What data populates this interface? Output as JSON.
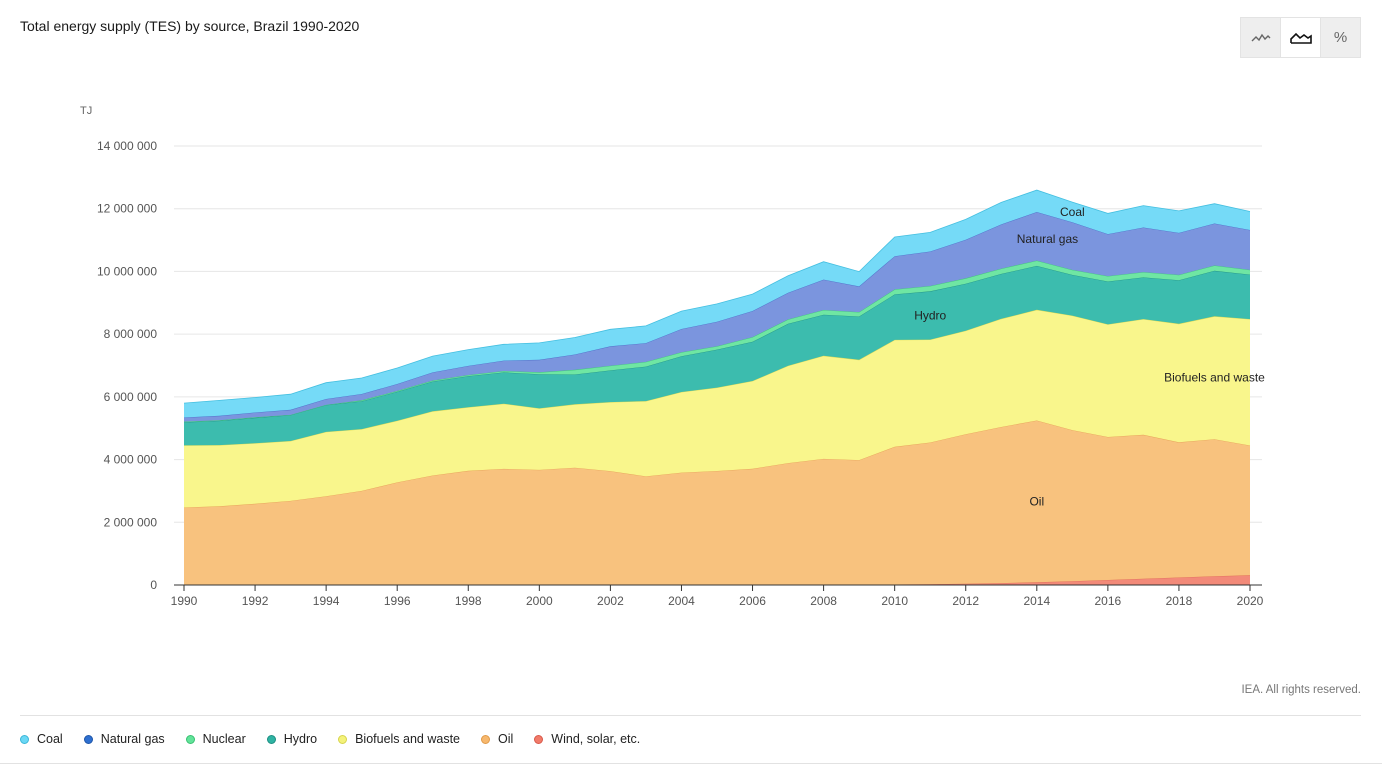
{
  "title": "Total energy supply (TES) by source, Brazil 1990-2020",
  "toggle": {
    "buttons": [
      {
        "name": "line-chart-toggle",
        "icon": "line-chart-icon"
      },
      {
        "name": "area-chart-toggle",
        "icon": "area-chart-icon",
        "active": true
      },
      {
        "name": "percent-toggle",
        "icon": "percent-icon",
        "label": "%"
      }
    ]
  },
  "credit": "IEA. All rights reserved.",
  "legend": [
    {
      "label": "Coal",
      "color": "#6bd8f5",
      "border": "#3bb6d8"
    },
    {
      "label": "Natural gas",
      "color": "#2e6fd0",
      "border": "#1f56a8"
    },
    {
      "label": "Nuclear",
      "color": "#62e39a",
      "border": "#38c172"
    },
    {
      "label": "Hydro",
      "color": "#2fb3a3",
      "border": "#1d8f82"
    },
    {
      "label": "Biofuels and waste",
      "color": "#f4f27a",
      "border": "#d6d44c"
    },
    {
      "label": "Oil",
      "color": "#f7b86e",
      "border": "#e09a48"
    },
    {
      "label": "Wind, solar, etc.",
      "color": "#f17b6a",
      "border": "#d9594a"
    }
  ],
  "chart_data": {
    "type": "area",
    "stacked": true,
    "title": "Total energy supply (TES) by source, Brazil 1990-2020",
    "unit": "TJ",
    "ylim": [
      0,
      14000000
    ],
    "yticks": [
      0,
      2000000,
      4000000,
      6000000,
      8000000,
      10000000,
      12000000,
      14000000
    ],
    "ytick_labels": [
      "0",
      "2 000 000",
      "4 000 000",
      "6 000 000",
      "8 000 000",
      "10 000 000",
      "12 000 000",
      "14 000 000"
    ],
    "xticks": [
      "1990",
      "1992",
      "1994",
      "1996",
      "1998",
      "2000",
      "2002",
      "2004",
      "2006",
      "2008",
      "2010",
      "2012",
      "2014",
      "2016",
      "2018",
      "2020"
    ],
    "x": [
      1990,
      1991,
      1992,
      1993,
      1994,
      1995,
      1996,
      1997,
      1998,
      1999,
      2000,
      2001,
      2002,
      2003,
      2004,
      2005,
      2006,
      2007,
      2008,
      2009,
      2010,
      2011,
      2012,
      2013,
      2014,
      2015,
      2016,
      2017,
      2018,
      2019,
      2020
    ],
    "series": [
      {
        "name": "Wind, solar, etc.",
        "color": "#f28a79",
        "line": "#e06a58",
        "values": [
          1000,
          1000,
          1000,
          1000,
          1000,
          1000,
          1000,
          1000,
          1000,
          1000,
          2000,
          2000,
          3000,
          4000,
          5000,
          6000,
          7000,
          9000,
          10000,
          13000,
          17000,
          25000,
          40000,
          60000,
          85000,
          120000,
          160000,
          200000,
          240000,
          280000,
          310000
        ]
      },
      {
        "name": "Oil",
        "color": "#f8c27e",
        "line": "#e7a45a",
        "values": [
          2470000,
          2510000,
          2590000,
          2680000,
          2830000,
          3000000,
          3270000,
          3490000,
          3640000,
          3700000,
          3670000,
          3740000,
          3630000,
          3460000,
          3580000,
          3630000,
          3700000,
          3880000,
          4010000,
          3970000,
          4390000,
          4520000,
          4770000,
          4980000,
          5160000,
          4820000,
          4560000,
          4590000,
          4310000,
          4370000,
          4140000
        ]
      },
      {
        "name": "Biofuels and waste",
        "color": "#f9f68c",
        "line": "#ddd950",
        "values": [
          1980000,
          1950000,
          1930000,
          1910000,
          2050000,
          1970000,
          1970000,
          2050000,
          2030000,
          2080000,
          1960000,
          2020000,
          2200000,
          2400000,
          2570000,
          2660000,
          2800000,
          3100000,
          3290000,
          3200000,
          3410000,
          3280000,
          3300000,
          3450000,
          3530000,
          3650000,
          3590000,
          3690000,
          3780000,
          3920000,
          4030000
        ]
      },
      {
        "name": "Hydro",
        "color": "#3cbcae",
        "line": "#239488",
        "values": [
          740000,
          780000,
          810000,
          830000,
          860000,
          890000,
          920000,
          950000,
          990000,
          1000000,
          1090000,
          950000,
          1010000,
          1100000,
          1140000,
          1210000,
          1250000,
          1340000,
          1310000,
          1380000,
          1450000,
          1540000,
          1500000,
          1430000,
          1400000,
          1300000,
          1370000,
          1330000,
          1390000,
          1450000,
          1420000
        ]
      },
      {
        "name": "Nuclear",
        "color": "#6fe6a3",
        "line": "#3fc57b",
        "values": [
          20000,
          15000,
          20000,
          5000,
          2000,
          30000,
          30000,
          30000,
          35000,
          45000,
          60000,
          150000,
          150000,
          150000,
          130000,
          110000,
          150000,
          140000,
          150000,
          140000,
          160000,
          170000,
          170000,
          170000,
          170000,
          160000,
          170000,
          170000,
          170000,
          170000,
          150000
        ]
      },
      {
        "name": "Natural gas",
        "color": "#7b95de",
        "line": "#4f6fc9",
        "values": [
          130000,
          140000,
          150000,
          160000,
          190000,
          200000,
          220000,
          260000,
          290000,
          330000,
          400000,
          490000,
          620000,
          600000,
          740000,
          780000,
          830000,
          850000,
          970000,
          820000,
          1060000,
          1100000,
          1230000,
          1410000,
          1550000,
          1520000,
          1340000,
          1420000,
          1340000,
          1340000,
          1270000
        ]
      },
      {
        "name": "Coal",
        "color": "#75daf7",
        "line": "#44bfe0",
        "values": [
          460000,
          490000,
          480000,
          500000,
          520000,
          510000,
          510000,
          520000,
          520000,
          520000,
          540000,
          540000,
          540000,
          550000,
          570000,
          570000,
          540000,
          540000,
          570000,
          470000,
          610000,
          610000,
          650000,
          700000,
          700000,
          640000,
          660000,
          700000,
          700000,
          630000,
          590000
        ]
      }
    ],
    "area_labels": [
      {
        "text": "Oil",
        "series": "Oil",
        "year": 2014
      },
      {
        "text": "Biofuels and waste",
        "series": "Biofuels and waste",
        "year": 2019
      },
      {
        "text": "Hydro",
        "series": "Hydro",
        "year": 2011
      },
      {
        "text": "Natural gas",
        "series": "Natural gas",
        "year": 2014.3
      },
      {
        "text": "Coal",
        "series": "Coal",
        "year": 2015
      }
    ]
  }
}
